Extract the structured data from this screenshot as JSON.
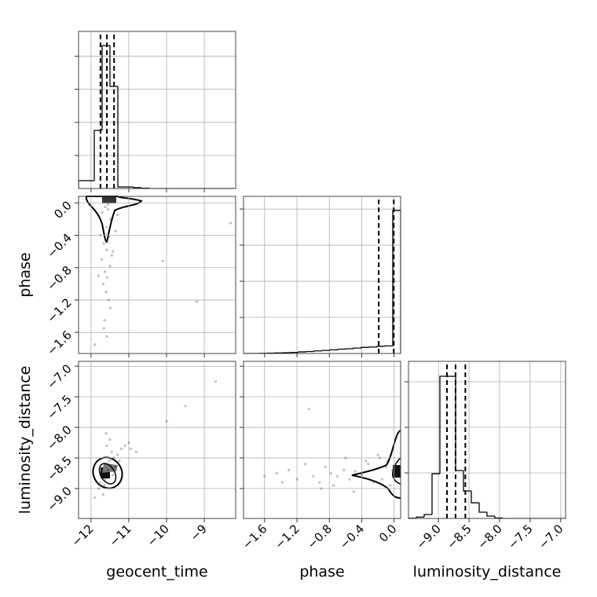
{
  "chart_data": [
    {
      "type": "histogram",
      "color": "#000000",
      "grid": true,
      "bins": [
        -12.33,
        -12.122,
        -11.914,
        -11.706,
        -11.498,
        -11.29,
        -11.082,
        -10.874,
        -10.666,
        -10.458,
        -10.25,
        -10.042,
        -9.834,
        -9.626,
        -9.418,
        -9.21,
        -9.002,
        -8.794,
        -8.586,
        -8.378,
        -8.17
      ],
      "counts": [
        95,
        95,
        703,
        1729,
        1235,
        19,
        19,
        10,
        5,
        0,
        0,
        0,
        0,
        0,
        0,
        0,
        0,
        0,
        0,
        0
      ],
      "quantiles": [
        -11.75,
        -11.58,
        -11.39
      ],
      "xlim": [
        -12.33,
        -8.17
      ],
      "ylim": [
        0,
        1900
      ],
      "xticks": [
        -12,
        -11,
        -10,
        -9
      ],
      "yticks": [
        400,
        800,
        1200,
        1600
      ]
    },
    {
      "type": "scatter",
      "color": "#000000",
      "grid": true,
      "ylabel": "phase",
      "x": [
        -11.62,
        -11.55,
        -11.7,
        -11.48,
        -11.6,
        -11.52,
        -11.66,
        -11.58,
        -11.45,
        -11.72,
        -11.5,
        -11.63,
        -11.57,
        -11.68,
        -11.42,
        -11.6,
        -11.53,
        -11.75,
        -11.49,
        -11.64,
        -11.35,
        -11.8,
        -11.58,
        -11.66,
        -11.3,
        -10.1,
        -9.2,
        -8.3,
        -11.9,
        -11.55
      ],
      "y": [
        -0.05,
        -0.08,
        -0.12,
        -0.2,
        -0.3,
        -0.42,
        -0.5,
        -0.58,
        -0.65,
        -0.7,
        -0.78,
        -0.85,
        -0.92,
        -1.0,
        -0.6,
        -1.1,
        -1.2,
        -0.4,
        -1.3,
        -1.45,
        -0.35,
        -0.9,
        -1.65,
        -1.55,
        -0.15,
        -0.72,
        -1.22,
        -0.25,
        -1.75,
        -0.02
      ],
      "xlim": [
        -12.33,
        -8.17
      ],
      "ylim": [
        -1.86,
        0.08
      ],
      "xticks": [
        -12,
        -11,
        -10,
        -9
      ],
      "yticks": [
        {
          "value": 0.0,
          "label": "0.0"
        },
        {
          "value": -0.4,
          "label": "−0.4"
        },
        {
          "value": -0.8,
          "label": "−0.8"
        },
        {
          "value": -1.2,
          "label": "−1.2"
        },
        {
          "value": -1.6,
          "label": "−1.6"
        }
      ]
    },
    {
      "type": "histogram",
      "color": "#000000",
      "grid": true,
      "bins": [
        -1.86,
        -1.763,
        -1.666,
        -1.569,
        -1.472,
        -1.375,
        -1.278,
        -1.181,
        -1.084,
        -0.987,
        -0.89,
        -0.793,
        -0.696,
        -0.599,
        -0.502,
        -0.405,
        -0.308,
        -0.211,
        -0.114,
        -0.017,
        0.08
      ],
      "counts": [
        0,
        0,
        5,
        10,
        15,
        20,
        30,
        45,
        55,
        70,
        85,
        100,
        120,
        130,
        150,
        170,
        180,
        200,
        210,
        3960
      ],
      "quantiles": [
        -0.19,
        -0.005
      ],
      "xlim": [
        -1.86,
        0.08
      ],
      "ylim": [
        0,
        4350
      ],
      "xticks": [
        -1.6,
        -1.2,
        -0.8,
        -0.4,
        0.0
      ],
      "yticks": [
        1000,
        2000,
        3000,
        4000
      ]
    },
    {
      "type": "scatter",
      "color": "#000000",
      "grid": true,
      "xlabel": "geocent_time",
      "ylabel": "luminosity_distance",
      "x": [
        -11.6,
        -11.55,
        -11.7,
        -11.48,
        -11.62,
        -11.52,
        -11.75,
        -11.4,
        -11.65,
        -11.58,
        -11.3,
        -11.8,
        -11.45,
        -11.2,
        -11.68,
        -11.35,
        -11.1,
        -11.9,
        -11.5,
        -11.6,
        -11.25,
        -10.95,
        -10.8,
        -11.0,
        -10.0,
        -9.5,
        -8.7,
        -11.56,
        -11.72,
        -11.42
      ],
      "y": [
        -8.75,
        -8.7,
        -8.8,
        -8.62,
        -8.85,
        -8.55,
        -8.9,
        -8.5,
        -8.95,
        -8.3,
        -8.45,
        -9.0,
        -8.4,
        -8.35,
        -9.1,
        -8.65,
        -8.3,
        -9.15,
        -8.2,
        -8.1,
        -8.55,
        -8.35,
        -8.4,
        -8.25,
        -7.9,
        -7.65,
        -7.25,
        -8.6,
        -8.72,
        -8.78
      ],
      "xlim": [
        -12.33,
        -8.17
      ],
      "ylim": [
        -9.49,
        -6.92
      ],
      "xticks": [
        {
          "value": -12,
          "label": "−12"
        },
        {
          "value": -11,
          "label": "−11"
        },
        {
          "value": -10,
          "label": "−10"
        },
        {
          "value": -9,
          "label": "−9"
        }
      ],
      "yticks": [
        {
          "value": -7.0,
          "label": "−7.0"
        },
        {
          "value": -7.5,
          "label": "−7.5"
        },
        {
          "value": -8.0,
          "label": "−8.0"
        },
        {
          "value": -8.5,
          "label": "−8.5"
        },
        {
          "value": -9.0,
          "label": "−9.0"
        }
      ]
    },
    {
      "type": "scatter",
      "color": "#000000",
      "grid": true,
      "xlabel": "phase",
      "x": [
        -1.6,
        -1.45,
        -1.3,
        -1.2,
        -1.1,
        -1.0,
        -0.92,
        -0.85,
        -0.78,
        -0.7,
        -0.62,
        -0.55,
        -0.48,
        -0.4,
        -0.32,
        -0.25,
        -0.18,
        -0.1,
        -0.05,
        -0.02,
        -0.9,
        -0.6,
        -0.35,
        -0.75,
        -1.05,
        -0.5,
        -0.2,
        -1.38,
        -0.15,
        -0.08
      ],
      "y": [
        -8.8,
        -8.75,
        -8.7,
        -8.85,
        -8.6,
        -8.8,
        -8.9,
        -8.65,
        -8.75,
        -8.8,
        -8.7,
        -8.85,
        -8.72,
        -8.78,
        -8.6,
        -8.9,
        -8.5,
        -8.65,
        -8.95,
        -8.7,
        -9.0,
        -8.5,
        -8.55,
        -8.95,
        -7.7,
        -9.05,
        -8.45,
        -8.9,
        -8.85,
        -8.55
      ],
      "xlim": [
        -1.86,
        0.08
      ],
      "ylim": [
        -9.49,
        -6.92
      ],
      "xticks": [
        {
          "value": -1.6,
          "label": "−1.6"
        },
        {
          "value": -1.2,
          "label": "−1.2"
        },
        {
          "value": -0.8,
          "label": "−0.8"
        },
        {
          "value": -0.4,
          "label": "−0.4"
        },
        {
          "value": 0.0,
          "label": "0.0"
        }
      ],
      "yticks": [
        -7.0,
        -7.5,
        -8.0,
        -8.5,
        -9.0
      ]
    },
    {
      "type": "histogram",
      "color": "#000000",
      "grid": true,
      "xlabel": "luminosity_distance",
      "bins": [
        -9.49,
        -9.3615,
        -9.233,
        -9.1045,
        -8.976,
        -8.8475,
        -8.719,
        -8.5905,
        -8.462,
        -8.3335,
        -8.205,
        -8.0765,
        -7.948,
        -7.8195,
        -7.691,
        -7.5625,
        -7.434,
        -7.3055,
        -7.177,
        -7.0485,
        -6.92
      ],
      "counts": [
        3,
        15,
        43,
        491,
        1560,
        1560,
        526,
        302,
        172,
        69,
        26,
        5,
        0,
        0,
        0,
        0,
        0,
        0,
        0,
        0
      ],
      "quantiles": [
        -8.86,
        -8.72,
        -8.56
      ],
      "xlim": [
        -9.49,
        -6.92
      ],
      "ylim": [
        0,
        1724
      ],
      "xticks": [
        {
          "value": -9.0,
          "label": "−9.0"
        },
        {
          "value": -8.5,
          "label": "−8.5"
        },
        {
          "value": -8.0,
          "label": "−8.0"
        },
        {
          "value": -7.5,
          "label": "−7.5"
        },
        {
          "value": -7.0,
          "label": "−7.0"
        }
      ],
      "yticks": [
        500,
        1000,
        1500
      ]
    }
  ]
}
